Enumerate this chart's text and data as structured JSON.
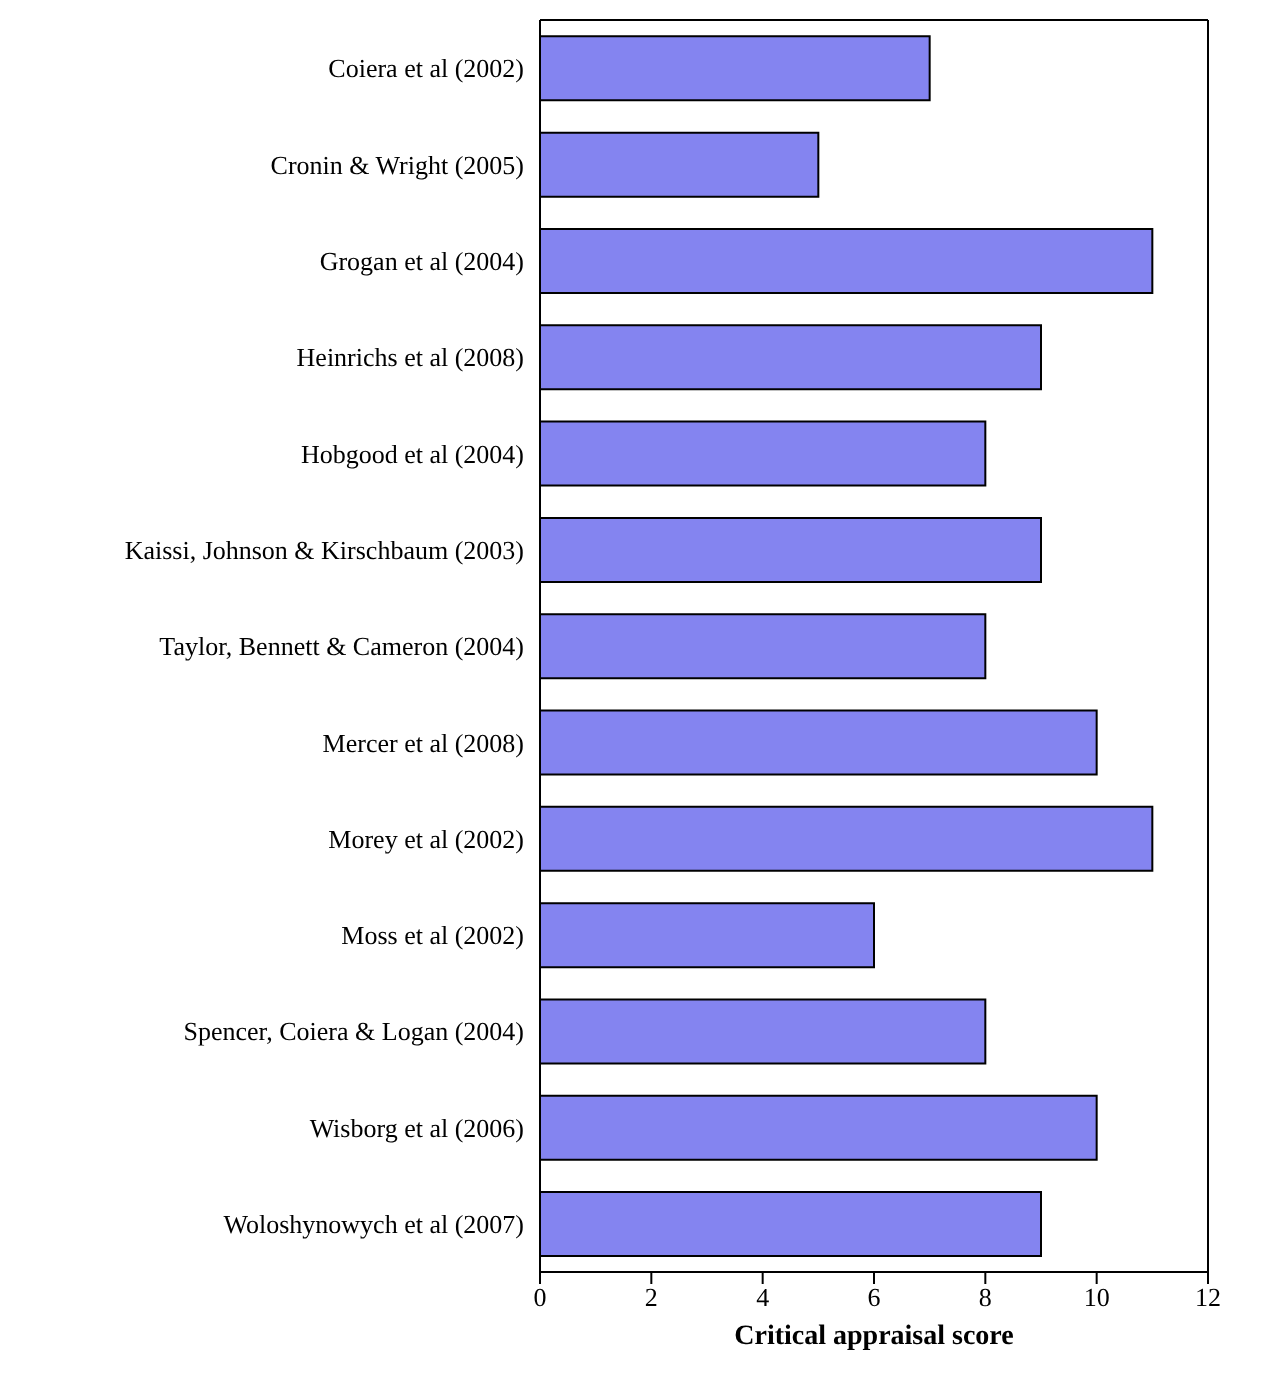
{
  "chart_data": {
    "type": "bar",
    "orientation": "horizontal",
    "xlabel": "Critical appraisal score",
    "categories": [
      "Coiera et al (2002)",
      "Cronin & Wright (2005)",
      "Grogan et al (2004)",
      "Heinrichs et al (2008)",
      "Hobgood et al (2004)",
      "Kaissi, Johnson & Kirschbaum (2003)",
      "Taylor, Bennett & Cameron (2004)",
      "Mercer et al (2008)",
      "Morey et al (2002)",
      "Moss et al (2002)",
      "Spencer, Coiera & Logan (2004)",
      "Wisborg et al (2006)",
      "Woloshynowych et al (2007)"
    ],
    "values": [
      7,
      5,
      11,
      9,
      8,
      9,
      8,
      10,
      11,
      6,
      8,
      10,
      9
    ],
    "color": "#8484f0",
    "xlim": [
      0,
      12
    ],
    "xticks": [
      0,
      2,
      4,
      6,
      8,
      10,
      12
    ],
    "grid": false,
    "legend": false
  }
}
